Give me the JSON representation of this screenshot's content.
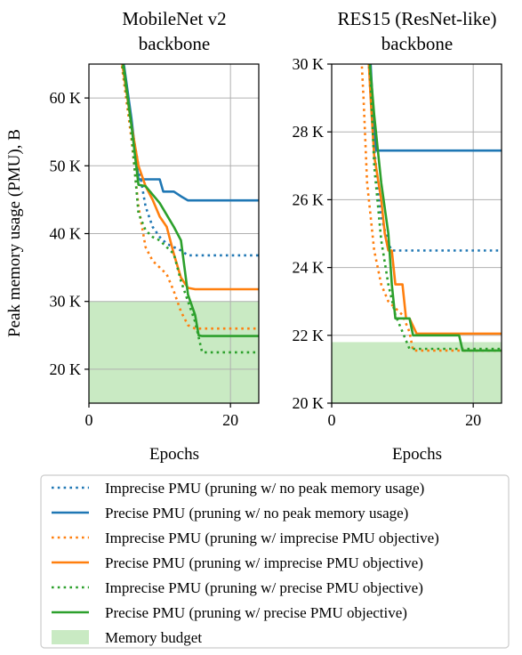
{
  "figure": {
    "shared_ylabel": "Peak memory usage (PMU), B"
  },
  "legend": {
    "entries": [
      {
        "label": "Imprecise PMU (pruning w/ no peak memory usage)",
        "color": "#1f77b4",
        "style": "dotted"
      },
      {
        "label": "Precise PMU (pruning w/ no peak memory usage)",
        "color": "#1f77b4",
        "style": "solid"
      },
      {
        "label": "Imprecise PMU (pruning w/ imprecise PMU objective)",
        "color": "#ff7f0e",
        "style": "dotted"
      },
      {
        "label": "Precise PMU (pruning w/ imprecise PMU objective)",
        "color": "#ff7f0e",
        "style": "solid"
      },
      {
        "label": "Imprecise PMU (pruning w/ precise PMU objective)",
        "color": "#2ca02c",
        "style": "dotted"
      },
      {
        "label": "Precise PMU (pruning w/ precise PMU objective)",
        "color": "#2ca02c",
        "style": "solid"
      },
      {
        "label": "Memory budget",
        "color": "#c9eac3",
        "style": "patch"
      }
    ]
  },
  "chart_data": [
    {
      "type": "line",
      "title": "MobileNet v2\nbackbone",
      "xlabel": "Epochs",
      "ylabel": "Peak memory usage (PMU), B",
      "xlim": [
        0,
        24
      ],
      "ylim": [
        15000,
        65000
      ],
      "xticks": [
        0,
        20
      ],
      "xtick_labels": [
        "0",
        "20"
      ],
      "yticks": [
        20000,
        30000,
        40000,
        50000,
        60000
      ],
      "ytick_labels": [
        "20 K",
        "30 K",
        "40 K",
        "50 K",
        "60 K"
      ],
      "grid": true,
      "budget": 30000,
      "budget_color": "#c9eac3",
      "series": [
        {
          "name": "Imprecise PMU (pruning w/ no peak memory usage)",
          "color": "#1f77b4",
          "style": "dotted",
          "x": [
            4,
            5,
            6,
            7,
            8,
            9,
            10,
            11,
            13,
            14,
            24
          ],
          "y": [
            70000,
            64000,
            56000,
            50000,
            44000,
            41000,
            39500,
            38500,
            37500,
            36800,
            36800
          ]
        },
        {
          "name": "Precise PMU (pruning w/ no peak memory usage)",
          "color": "#1f77b4",
          "style": "solid",
          "x": [
            4,
            5,
            6,
            7,
            8,
            10,
            10.5,
            12,
            13,
            14,
            24
          ],
          "y": [
            70000,
            64500,
            57000,
            48000,
            48000,
            48000,
            46200,
            46200,
            45500,
            44900,
            44900
          ]
        },
        {
          "name": "Imprecise PMU (pruning w/ imprecise PMU objective)",
          "color": "#ff7f0e",
          "style": "dotted",
          "x": [
            4,
            5,
            6,
            7,
            8,
            9,
            10,
            11,
            12,
            13,
            14,
            15,
            24
          ],
          "y": [
            70000,
            62000,
            54000,
            44000,
            38000,
            36000,
            35000,
            34000,
            31500,
            28500,
            26500,
            26000,
            26000
          ]
        },
        {
          "name": "Precise PMU (pruning w/ imprecise PMU objective)",
          "color": "#ff7f0e",
          "style": "solid",
          "x": [
            4,
            5,
            6,
            7,
            8,
            9,
            10,
            11,
            12,
            13,
            14,
            15,
            24
          ],
          "y": [
            70000,
            63000,
            56000,
            50000,
            47000,
            45000,
            42500,
            41000,
            37000,
            33500,
            32000,
            31800,
            31800
          ]
        },
        {
          "name": "Imprecise PMU (pruning w/ precise PMU objective)",
          "color": "#2ca02c",
          "style": "dotted",
          "x": [
            4,
            5,
            6,
            7,
            8,
            9,
            10,
            12,
            13,
            14,
            15,
            16,
            24
          ],
          "y": [
            70000,
            63000,
            55000,
            43000,
            40500,
            39500,
            39000,
            37000,
            33000,
            30000,
            27000,
            22500,
            22500
          ]
        },
        {
          "name": "Precise PMU (pruning w/ precise PMU objective)",
          "color": "#2ca02c",
          "style": "solid",
          "x": [
            4,
            5,
            6,
            7,
            8,
            10,
            12,
            13,
            14,
            15,
            15.5,
            16,
            24
          ],
          "y": [
            70000,
            64000,
            56000,
            47200,
            47000,
            44500,
            41000,
            39000,
            31000,
            28000,
            25000,
            24900,
            24900
          ]
        }
      ]
    },
    {
      "type": "line",
      "title": "RES15 (ResNet-like)\nbackbone",
      "xlabel": "Epochs",
      "xlim": [
        0,
        24
      ],
      "ylim": [
        20000,
        30000
      ],
      "xticks": [
        0,
        20
      ],
      "xtick_labels": [
        "0",
        "20"
      ],
      "yticks": [
        20000,
        22000,
        24000,
        26000,
        28000,
        30000
      ],
      "ytick_labels": [
        "20 K",
        "22 K",
        "24 K",
        "26 K",
        "28 K",
        "30 K"
      ],
      "grid": true,
      "budget": 21800,
      "budget_color": "#c9eac3",
      "series": [
        {
          "name": "Imprecise PMU (pruning w/ no peak memory usage)",
          "color": "#1f77b4",
          "style": "dotted",
          "x": [
            5,
            5.5,
            6,
            7,
            8,
            8.5,
            24
          ],
          "y": [
            31000,
            29000,
            27500,
            25500,
            24700,
            24500,
            24500
          ]
        },
        {
          "name": "Precise PMU (pruning w/ no peak memory usage)",
          "color": "#1f77b4",
          "style": "solid",
          "x": [
            5,
            5.5,
            6,
            6.3,
            24
          ],
          "y": [
            31000,
            30000,
            28000,
            27450,
            27450
          ]
        },
        {
          "name": "Imprecise PMU (pruning w/ imprecise PMU objective)",
          "color": "#ff7f0e",
          "style": "dotted",
          "x": [
            4,
            4.5,
            5,
            6,
            7,
            8,
            9,
            10,
            11,
            11.5,
            24
          ],
          "y": [
            31000,
            29000,
            26500,
            24500,
            23500,
            23000,
            22800,
            22600,
            22100,
            21550,
            21550
          ]
        },
        {
          "name": "Precise PMU (pruning w/ imprecise PMU objective)",
          "color": "#ff7f0e",
          "style": "solid",
          "x": [
            5,
            5.5,
            6,
            7,
            7.5,
            8,
            8.5,
            9,
            10,
            10.5,
            11,
            12,
            13,
            24
          ],
          "y": [
            31000,
            29000,
            27300,
            26000,
            25000,
            24500,
            24500,
            23500,
            23500,
            22500,
            22500,
            22050,
            22050,
            22050
          ]
        },
        {
          "name": "Imprecise PMU (pruning w/ precise PMU objective)",
          "color": "#2ca02c",
          "style": "dotted",
          "x": [
            5,
            5.5,
            6,
            7,
            8,
            9,
            10,
            11,
            24
          ],
          "y": [
            31000,
            29500,
            27000,
            24800,
            23500,
            22600,
            22100,
            21600,
            21600
          ]
        },
        {
          "name": "Precise PMU (pruning w/ precise PMU objective)",
          "color": "#2ca02c",
          "style": "solid",
          "x": [
            5,
            6,
            7,
            8,
            8.5,
            9,
            10,
            11,
            11.5,
            12,
            18,
            18.5,
            24
          ],
          "y": [
            31000,
            28500,
            26500,
            25000,
            23500,
            22500,
            22500,
            22500,
            22000,
            22000,
            22000,
            21550,
            21550
          ]
        }
      ]
    }
  ]
}
